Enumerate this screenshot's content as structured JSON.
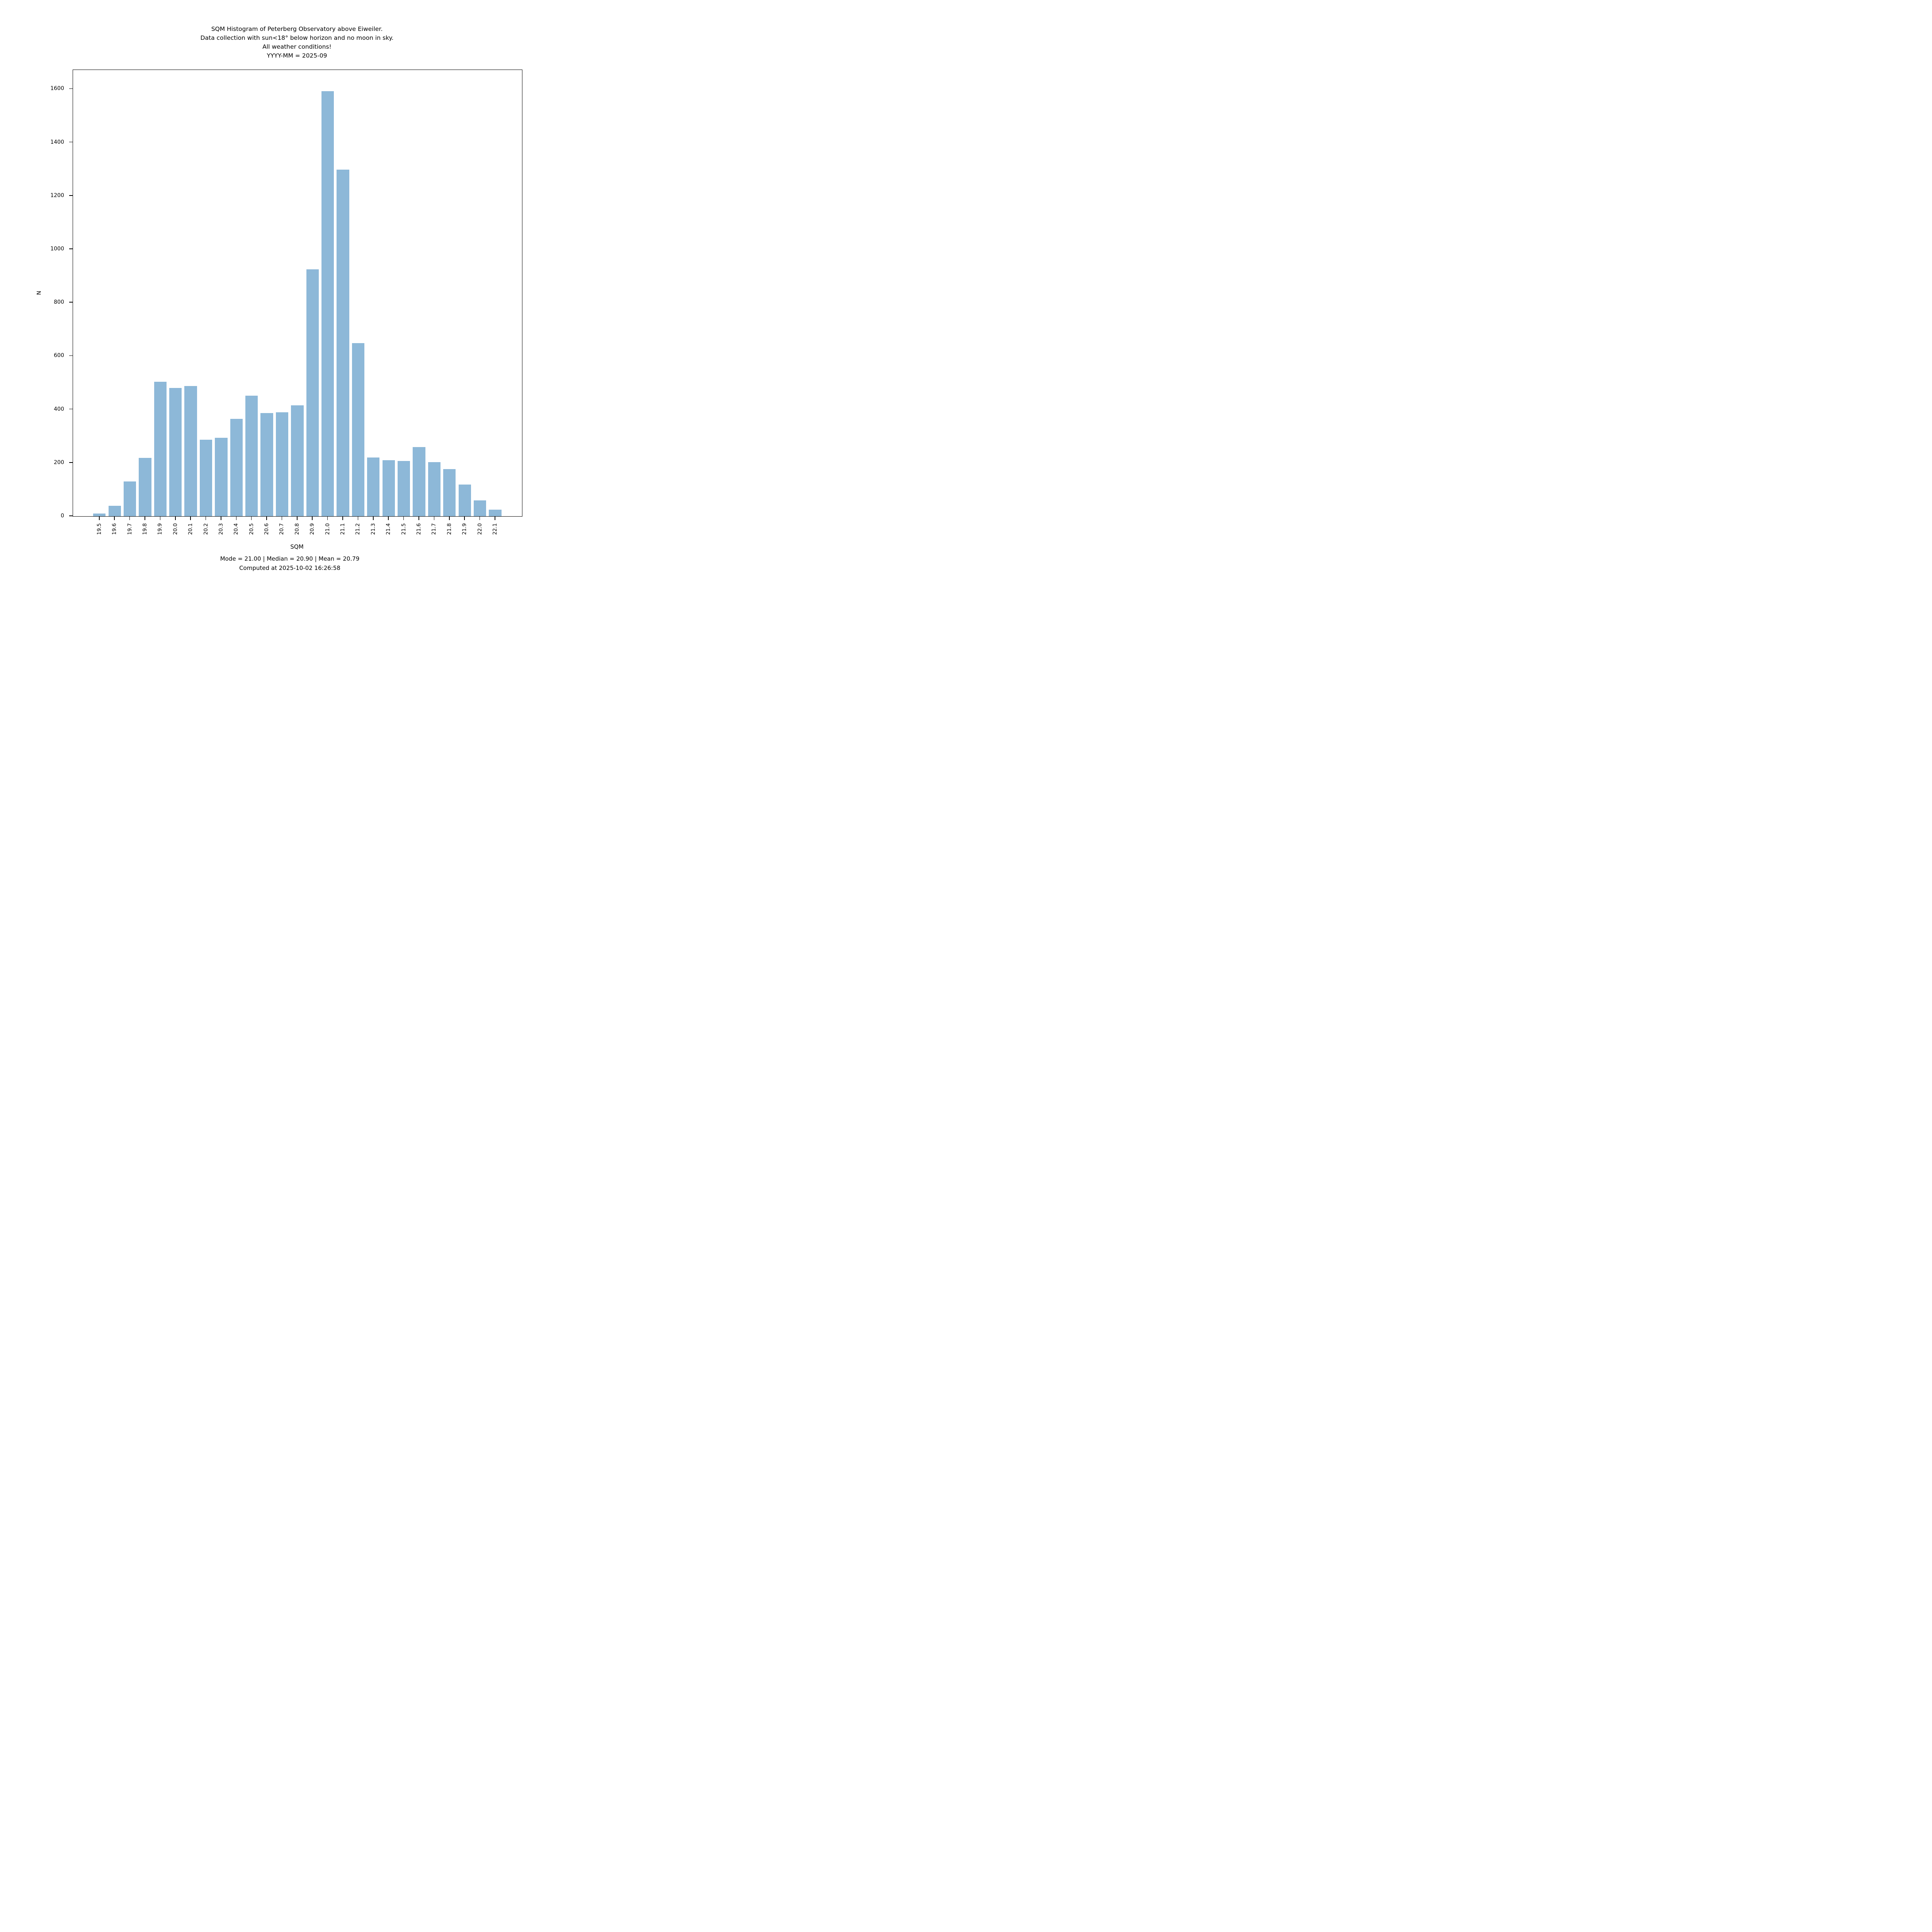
{
  "title_lines": [
    "SQM Histogram of Peterberg Observatory above Eiweiler.",
    "Data collection with sun<18° below horizon and no moon in sky.",
    "All weather conditions!",
    "YYYY-MM = 2025-09"
  ],
  "footer": {
    "stats_line": "Mode = 21.00 | Median = 20.90 | Mean = 20.79",
    "mode": "21.00",
    "median": "20.90",
    "mean": "20.79",
    "computed_line": "Computed at 2025-10-02 16:26:58"
  },
  "chart_data": {
    "type": "bar",
    "title": "SQM Histogram of Peterberg Observatory above Eiweiler. Data collection with sun<18° below horizon and no moon in sky. All weather conditions! YYYY-MM = 2025-09",
    "xlabel": "SQM",
    "ylabel": "N",
    "categories": [
      "19.5",
      "19.6",
      "19.7",
      "19.8",
      "19.9",
      "20.0",
      "20.1",
      "20.2",
      "20.3",
      "20.4",
      "20.5",
      "20.6",
      "20.7",
      "20.8",
      "20.9",
      "21.0",
      "21.1",
      "21.2",
      "21.3",
      "21.4",
      "21.5",
      "21.6",
      "21.7",
      "21.8",
      "21.9",
      "22.0",
      "22.1"
    ],
    "values": [
      10,
      39,
      131,
      219,
      504,
      480,
      488,
      286,
      294,
      365,
      452,
      386,
      389,
      416,
      925,
      1592,
      1298,
      648,
      220,
      210,
      207,
      259,
      202,
      176,
      118,
      59,
      24
    ],
    "yticks": [
      0,
      200,
      400,
      600,
      800,
      1000,
      1200,
      1400,
      1600
    ],
    "ylim": [
      0,
      1671.6
    ],
    "xlim": [
      19.3254,
      22.2778
    ],
    "bin_width": 0.1,
    "bar_width_data": 0.082,
    "bar_color": "#8db8d8",
    "axis_color": "#000000",
    "grid": false,
    "legend_position": "none"
  }
}
